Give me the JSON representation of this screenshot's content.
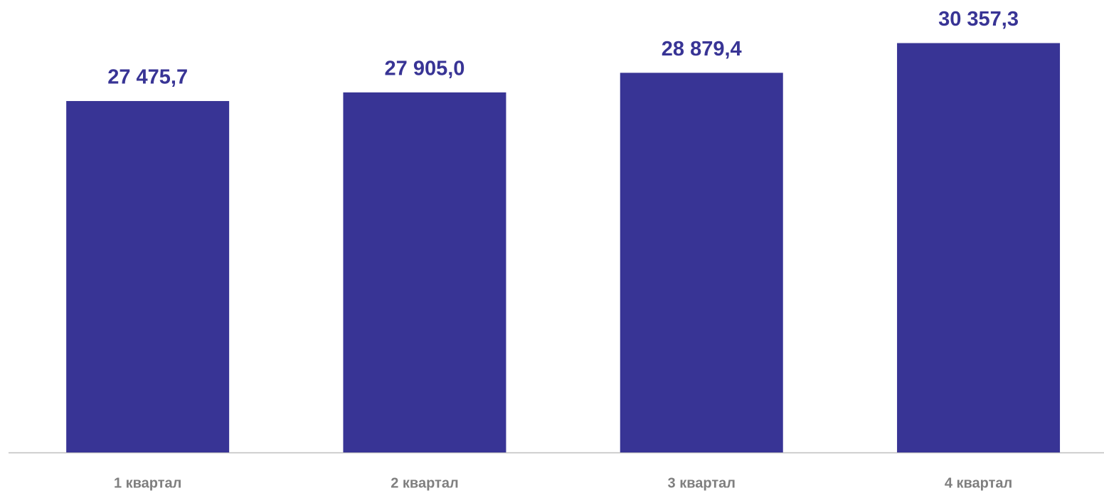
{
  "chart_data": {
    "type": "bar",
    "categories": [
      "1 квартал",
      "2 квартал",
      "3 квартал",
      "4 квартал"
    ],
    "values": [
      27475.7,
      27905.0,
      28879.4,
      30357.3
    ],
    "value_labels": [
      "27 475,7",
      "27 905,0",
      "28 879,4",
      "30 357,3"
    ],
    "color": "#383495",
    "ylim": [
      10000,
      32500
    ]
  }
}
